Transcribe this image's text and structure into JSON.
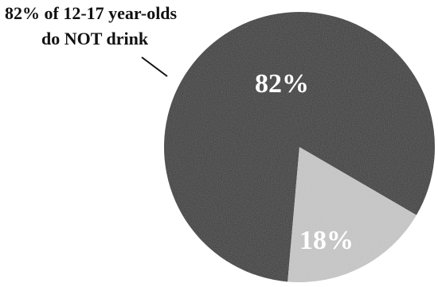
{
  "chart_data": {
    "type": "pie",
    "title": "",
    "slices": [
      {
        "label": "82%",
        "value": 82,
        "color": "#0c0c0c"
      },
      {
        "label": "18%",
        "value": 18,
        "color": "#c9c9c9"
      }
    ],
    "annotation": {
      "line1": "82% of 12-17 year-olds",
      "line2": "do NOT drink"
    }
  }
}
